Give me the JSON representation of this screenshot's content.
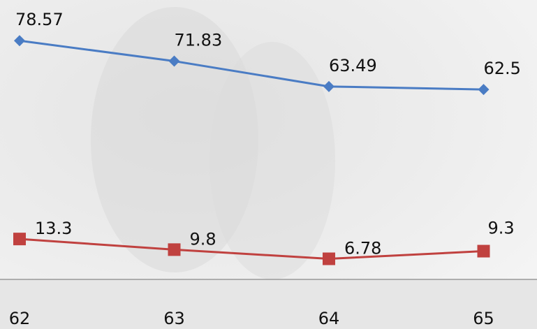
{
  "chart_data": {
    "type": "line",
    "categories": [
      "62",
      "63",
      "64",
      "65"
    ],
    "series": [
      {
        "name": null,
        "color": "#4a7cc4",
        "marker": "diamond",
        "values": [
          78.57,
          71.83,
          63.49,
          62.5
        ]
      },
      {
        "name": null,
        "color": "#c0413f",
        "marker": "square",
        "values": [
          13.3,
          9.8,
          6.78,
          9.3
        ]
      }
    ]
  }
}
